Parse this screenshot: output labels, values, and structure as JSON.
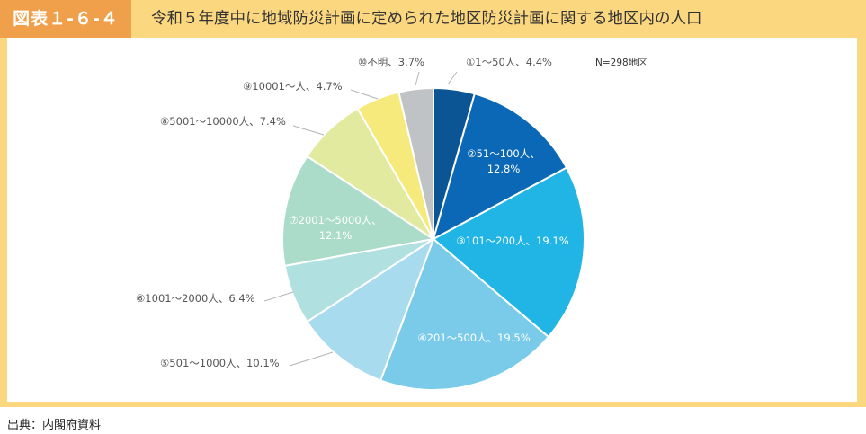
{
  "header": {
    "figure_no": "図表１-６-４",
    "title": "令和５年度中に地域防災計画に定められた地区防災計画に関する地区内の人口"
  },
  "source": "出典：内閣府資料",
  "chart_data": {
    "type": "pie",
    "note": "N=298地区",
    "slices": [
      {
        "label": "①1～50人、4.4%",
        "value": 4.4,
        "color": "#0c5594"
      },
      {
        "label": "②51～100人、12.8%",
        "lines": [
          "②51～100人、",
          "12.8%"
        ],
        "value": 12.8,
        "color": "#0b68b6"
      },
      {
        "label": "③101～200人、19.1%",
        "value": 19.1,
        "color": "#21b5e6"
      },
      {
        "label": "④201～500人、19.5%",
        "value": 19.5,
        "color": "#79cbe9"
      },
      {
        "label": "⑤501～1000人、10.1%",
        "value": 10.1,
        "color": "#a9dbee"
      },
      {
        "label": "⑥1001～2000人、6.4%",
        "value": 6.4,
        "color": "#b1e0e0"
      },
      {
        "label": "⑦2001～5000人、12.1%",
        "lines": [
          "⑦2001～5000人、",
          "12.1%"
        ],
        "value": 12.1,
        "color": "#abdcc9"
      },
      {
        "label": "⑧5001～10000人、7.4%",
        "value": 7.4,
        "color": "#e2eaa0"
      },
      {
        "label": "⑨10001～人、4.7%",
        "value": 4.7,
        "color": "#f7ea7c"
      },
      {
        "label": "⑩不明、3.7%",
        "value": 3.7,
        "color": "#c0c3c5"
      }
    ]
  }
}
